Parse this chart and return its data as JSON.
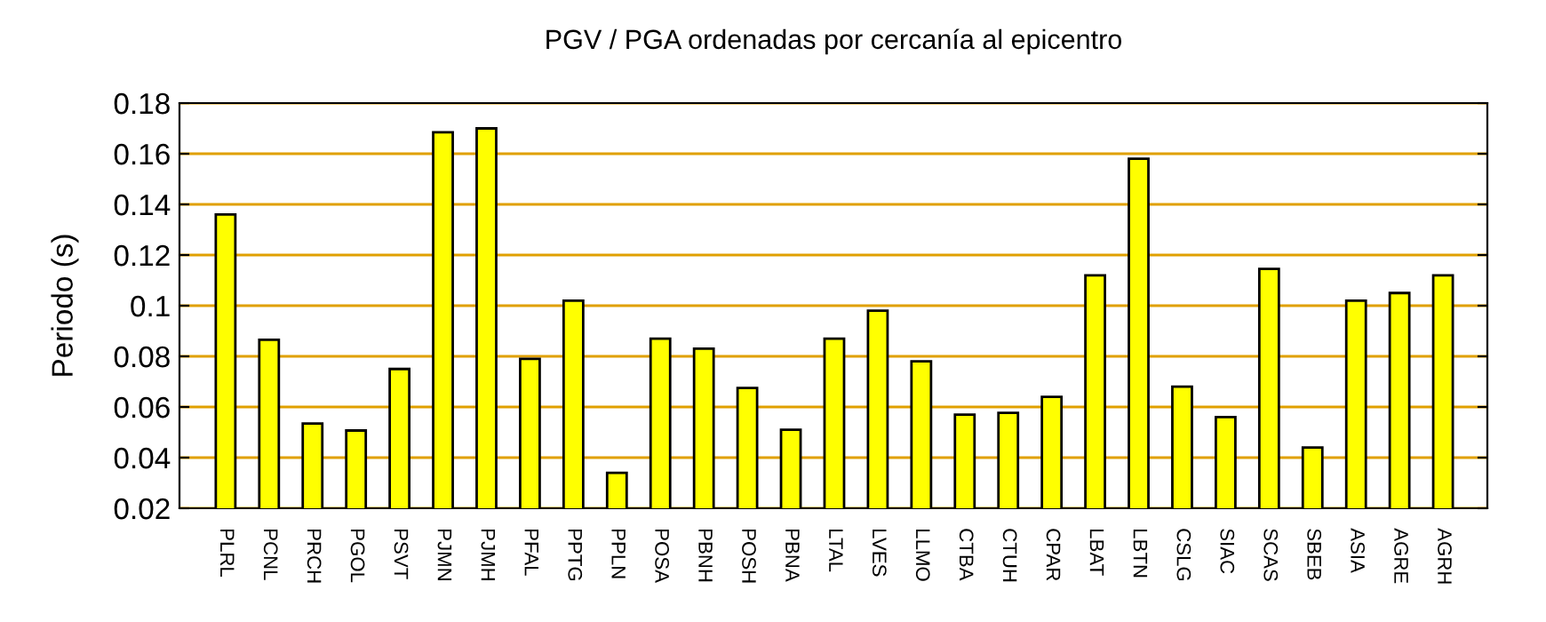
{
  "chart_data": {
    "type": "bar",
    "title": "PGV / PGA ordenadas por cercanía al epicentro",
    "ylabel": "Periodo (s)",
    "categories": [
      "PLRL",
      "PCNL",
      "PRCH",
      "PGOL",
      "PSVT",
      "PJMN",
      "PJMH",
      "PFAL",
      "PPTG",
      "PPLN",
      "POSA",
      "PBNH",
      "POSH",
      "PBNA",
      "LTAL",
      "LVES",
      "LLMO",
      "CTBA",
      "CTUH",
      "CPAR",
      "LBAT",
      "LBTN",
      "CSLG",
      "SIAC",
      "SCAS",
      "SBEB",
      "ASIA",
      "AGRE",
      "AGRH"
    ],
    "values": [
      0.136,
      0.0865,
      0.0535,
      0.0507,
      0.075,
      0.1685,
      0.17,
      0.079,
      0.102,
      0.034,
      0.087,
      0.083,
      0.0675,
      0.051,
      0.087,
      0.098,
      0.078,
      0.057,
      0.0577,
      0.064,
      0.112,
      0.158,
      0.068,
      0.056,
      0.1145,
      0.044,
      0.102,
      0.105,
      0.112
    ],
    "color": "#ffff00",
    "ylim": [
      0.02,
      0.18
    ],
    "yticks": [
      {
        "value": 0.02,
        "label": "0.02"
      },
      {
        "value": 0.04,
        "label": "0.04"
      },
      {
        "value": 0.06,
        "label": "0.06"
      },
      {
        "value": 0.08,
        "label": "0.08"
      },
      {
        "value": 0.1,
        "label": "0.1"
      },
      {
        "value": 0.12,
        "label": "0.12"
      },
      {
        "value": 0.14,
        "label": "0.14"
      },
      {
        "value": 0.16,
        "label": "0.16"
      },
      {
        "value": 0.18,
        "label": "0.18"
      }
    ],
    "grid": "y",
    "legend": false
  }
}
